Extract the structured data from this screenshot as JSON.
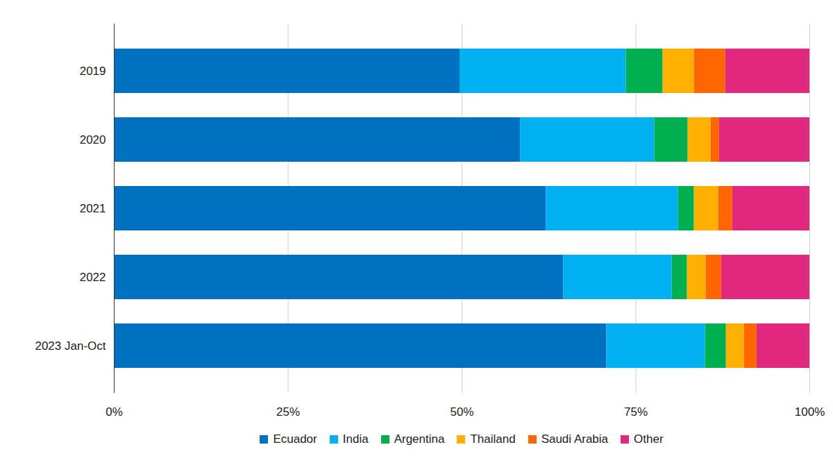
{
  "chart_data": {
    "type": "bar",
    "orientation": "horizontal",
    "stacked": true,
    "grid": true,
    "legend": "bottom",
    "categories": [
      "2019",
      "2020",
      "2021",
      "2022",
      "2023 Jan-Oct"
    ],
    "xlim": [
      0,
      100
    ],
    "xticks": [
      {
        "value": 0,
        "label": "0%"
      },
      {
        "value": 25,
        "label": "25%"
      },
      {
        "value": 50,
        "label": "50%"
      },
      {
        "value": 75,
        "label": "75%"
      },
      {
        "value": 100,
        "label": "100%"
      }
    ],
    "series": [
      {
        "name": "Ecuador",
        "color": "#0070c0",
        "values": [
          49.7,
          58.4,
          62.1,
          64.6,
          70.8
        ]
      },
      {
        "name": "India",
        "color": "#00b0f0",
        "values": [
          23.9,
          19.3,
          19.0,
          15.6,
          14.2
        ]
      },
      {
        "name": "Argentina",
        "color": "#00b050",
        "values": [
          5.3,
          4.8,
          2.3,
          2.2,
          3.0
        ]
      },
      {
        "name": "Thailand",
        "color": "#ffb000",
        "values": [
          4.5,
          3.3,
          3.5,
          2.7,
          2.6
        ]
      },
      {
        "name": "Saudi Arabia",
        "color": "#ff6600",
        "values": [
          4.5,
          1.2,
          2.0,
          2.2,
          1.8
        ]
      },
      {
        "name": "Other",
        "color": "#e0287e",
        "values": [
          12.1,
          13.0,
          11.1,
          12.7,
          7.6
        ]
      }
    ]
  }
}
